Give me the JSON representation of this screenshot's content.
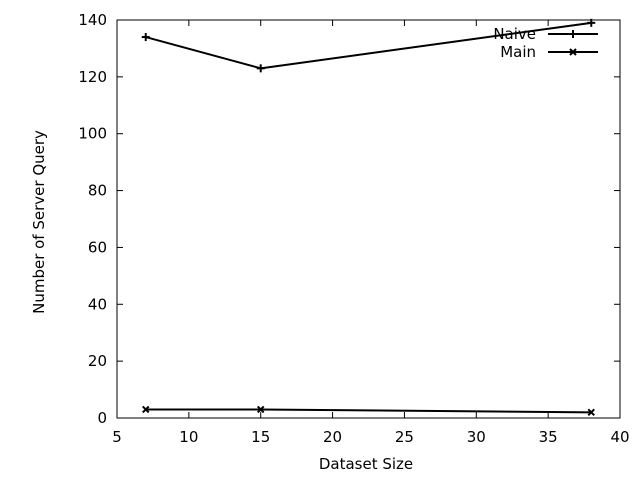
{
  "chart_data": {
    "type": "line",
    "title": "",
    "xlabel": "Dataset Size",
    "ylabel": "Number of Server Query",
    "xlim": [
      5,
      40
    ],
    "ylim": [
      0,
      140
    ],
    "xticks": [
      5,
      10,
      15,
      20,
      25,
      30,
      35,
      40
    ],
    "yticks": [
      0,
      20,
      40,
      60,
      80,
      100,
      120,
      140
    ],
    "grid": false,
    "legend_position": "top-right",
    "series": [
      {
        "name": "Naive",
        "marker": "plus",
        "color": "#000000",
        "x": [
          7,
          15,
          38
        ],
        "y": [
          134,
          123,
          139
        ]
      },
      {
        "name": "Main",
        "marker": "cross",
        "color": "#000000",
        "x": [
          7,
          15,
          38
        ],
        "y": [
          3,
          3,
          2
        ]
      }
    ]
  }
}
